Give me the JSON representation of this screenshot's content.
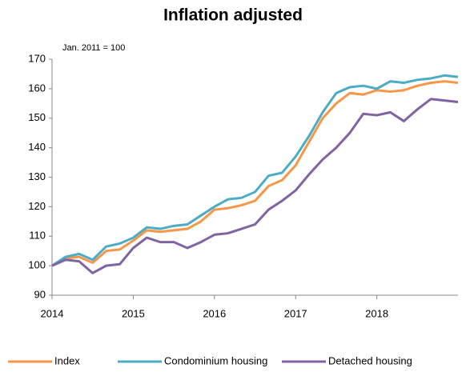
{
  "chart_data": {
    "type": "line",
    "title": "Inflation adjusted",
    "annotation": "Jan. 2011 = 100",
    "x": [
      2014,
      2014.1667,
      2014.3333,
      2014.5,
      2014.6667,
      2014.8333,
      2015,
      2015.1667,
      2015.3333,
      2015.5,
      2015.6667,
      2015.8333,
      2016,
      2016.1667,
      2016.3333,
      2016.5,
      2016.6667,
      2016.8333,
      2017,
      2017.1667,
      2017.3333,
      2017.5,
      2017.6667,
      2017.8333,
      2018,
      2018.1667,
      2018.3333,
      2018.5,
      2018.6667,
      2018.8333,
      2019
    ],
    "series": [
      {
        "name": "Index",
        "color": "#f79646",
        "values": [
          100,
          102.5,
          103,
          101,
          105,
          105.5,
          108.5,
          112,
          111.5,
          112,
          112.5,
          115,
          119,
          119.5,
          120.5,
          122,
          127,
          129,
          134,
          142,
          150,
          155,
          158.5,
          158,
          159.5,
          159,
          159.5,
          161,
          162,
          162.5,
          162
        ]
      },
      {
        "name": "Condominium housing",
        "color": "#4bacc6",
        "values": [
          100,
          103,
          104,
          102,
          106.5,
          107.5,
          109.5,
          113,
          112.5,
          113.5,
          114,
          117,
          120,
          122.5,
          123,
          125,
          130.5,
          131.5,
          137,
          144,
          152,
          158.5,
          160.5,
          161,
          160,
          162.5,
          162,
          163,
          163.5,
          164.5,
          164
        ]
      },
      {
        "name": "Detached housing",
        "color": "#8064a2",
        "values": [
          100,
          102,
          101.5,
          97.5,
          100,
          100.5,
          106,
          109.5,
          108,
          108,
          106,
          108,
          110.5,
          111,
          112.5,
          114,
          119,
          122,
          125.5,
          131,
          136,
          140,
          145,
          151.5,
          151,
          152,
          149,
          153,
          156.5,
          156,
          155.5
        ]
      }
    ],
    "xlim": [
      2014,
      2019
    ],
    "xticks": [
      2014,
      2015,
      2016,
      2017,
      2018
    ],
    "ylim": [
      90,
      170
    ],
    "yticks": [
      90,
      100,
      110,
      120,
      130,
      140,
      150,
      160,
      170
    ],
    "grid": false,
    "legend": "bottom"
  }
}
